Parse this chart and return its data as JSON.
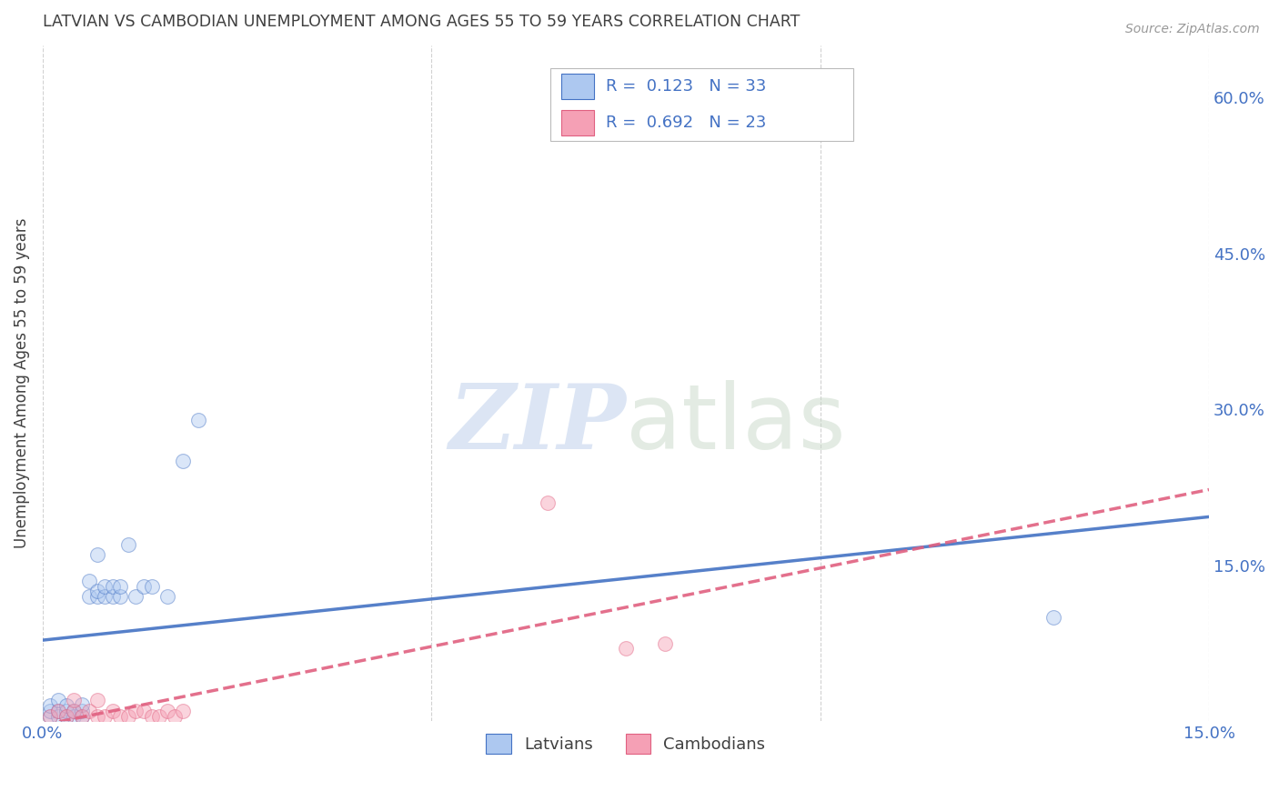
{
  "title": "LATVIAN VS CAMBODIAN UNEMPLOYMENT AMONG AGES 55 TO 59 YEARS CORRELATION CHART",
  "source": "Source: ZipAtlas.com",
  "ylabel": "Unemployment Among Ages 55 to 59 years",
  "xlim": [
    0.0,
    0.15
  ],
  "ylim": [
    0.0,
    0.65
  ],
  "right_yticks": [
    0.6,
    0.45,
    0.3,
    0.15
  ],
  "right_ytick_labels": [
    "60.0%",
    "45.0%",
    "30.0%",
    "15.0%"
  ],
  "xticks": [
    0.0,
    0.05,
    0.1,
    0.15
  ],
  "xtick_labels": [
    "0.0%",
    "",
    "",
    "15.0%"
  ],
  "latvian_R": 0.123,
  "latvian_N": 33,
  "cambodian_R": 0.692,
  "cambodian_N": 23,
  "latvian_color": "#adc8f0",
  "cambodian_color": "#f5a0b5",
  "latvian_line_color": "#4472c4",
  "cambodian_line_color": "#e06080",
  "bg_color": "#ffffff",
  "grid_color": "#cccccc",
  "title_color": "#404040",
  "axis_color": "#4472c4",
  "latvians_x": [
    0.001,
    0.001,
    0.001,
    0.002,
    0.002,
    0.002,
    0.003,
    0.003,
    0.003,
    0.004,
    0.004,
    0.005,
    0.005,
    0.005,
    0.006,
    0.006,
    0.007,
    0.007,
    0.007,
    0.008,
    0.008,
    0.009,
    0.009,
    0.01,
    0.01,
    0.011,
    0.012,
    0.013,
    0.014,
    0.016,
    0.018,
    0.02,
    0.13
  ],
  "latvians_y": [
    0.005,
    0.01,
    0.015,
    0.005,
    0.01,
    0.02,
    0.005,
    0.01,
    0.015,
    0.005,
    0.01,
    0.005,
    0.01,
    0.016,
    0.12,
    0.135,
    0.12,
    0.125,
    0.16,
    0.12,
    0.13,
    0.12,
    0.13,
    0.12,
    0.13,
    0.17,
    0.12,
    0.13,
    0.13,
    0.12,
    0.25,
    0.29,
    0.1
  ],
  "cambodians_x": [
    0.001,
    0.002,
    0.003,
    0.004,
    0.004,
    0.005,
    0.006,
    0.007,
    0.007,
    0.008,
    0.009,
    0.01,
    0.011,
    0.012,
    0.013,
    0.014,
    0.015,
    0.016,
    0.017,
    0.018,
    0.065,
    0.075,
    0.08
  ],
  "cambodians_y": [
    0.005,
    0.01,
    0.005,
    0.01,
    0.02,
    0.005,
    0.01,
    0.005,
    0.02,
    0.005,
    0.01,
    0.005,
    0.005,
    0.01,
    0.01,
    0.005,
    0.005,
    0.01,
    0.005,
    0.01,
    0.21,
    0.07,
    0.075
  ],
  "watermark_zip": "ZIP",
  "watermark_atlas": "atlas",
  "marker_size": 130,
  "marker_alpha": 0.45,
  "line_width": 2.5
}
